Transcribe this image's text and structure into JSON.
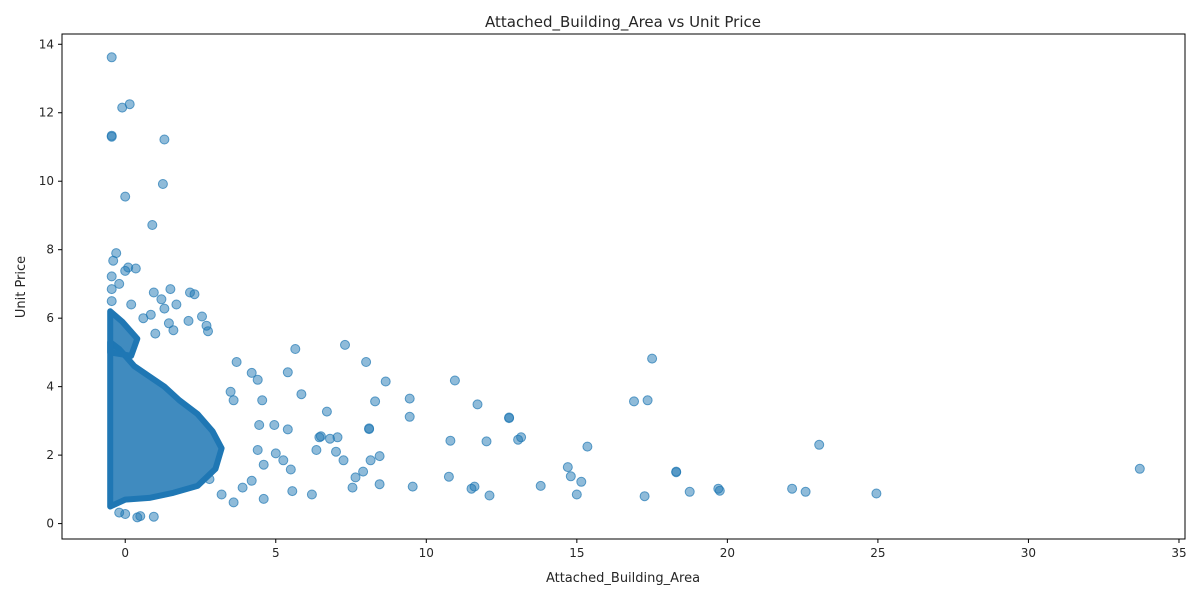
{
  "chart_data": {
    "type": "scatter",
    "title": "Attached_Building_Area vs Unit Price",
    "xlabel": "Attached_Building_Area",
    "ylabel": "Unit Price",
    "xlim": [
      -2.1,
      35.2
    ],
    "ylim": [
      -0.45,
      14.3
    ],
    "xticks": [
      0,
      5,
      10,
      15,
      20,
      25,
      30,
      35
    ],
    "yticks": [
      0,
      2,
      4,
      6,
      8,
      10,
      12,
      14
    ],
    "grid": false,
    "color": "#1f77b4",
    "series": [
      {
        "points": [
          [
            -0.45,
            13.62
          ],
          [
            -0.1,
            12.15
          ],
          [
            0.15,
            12.25
          ],
          [
            -0.45,
            11.33
          ],
          [
            -0.45,
            11.3
          ],
          [
            1.3,
            11.22
          ],
          [
            1.25,
            9.92
          ],
          [
            0.0,
            9.55
          ],
          [
            0.9,
            8.72
          ],
          [
            -0.3,
            7.9
          ],
          [
            -0.4,
            7.68
          ],
          [
            0.1,
            7.48
          ],
          [
            0.35,
            7.45
          ],
          [
            0.0,
            7.38
          ],
          [
            -0.45,
            7.22
          ],
          [
            -0.2,
            7.0
          ],
          [
            -0.45,
            6.85
          ],
          [
            0.95,
            6.75
          ],
          [
            1.5,
            6.85
          ],
          [
            2.15,
            6.75
          ],
          [
            2.3,
            6.7
          ],
          [
            1.2,
            6.55
          ],
          [
            -0.45,
            6.5
          ],
          [
            0.2,
            6.4
          ],
          [
            1.7,
            6.4
          ],
          [
            1.3,
            6.28
          ],
          [
            0.85,
            6.1
          ],
          [
            0.6,
            6.0
          ],
          [
            2.55,
            6.05
          ],
          [
            1.45,
            5.85
          ],
          [
            2.1,
            5.92
          ],
          [
            2.7,
            5.78
          ],
          [
            2.75,
            5.62
          ],
          [
            1.0,
            5.55
          ],
          [
            1.6,
            5.65
          ],
          [
            5.65,
            5.1
          ],
          [
            7.3,
            5.22
          ],
          [
            3.7,
            4.72
          ],
          [
            8.0,
            4.72
          ],
          [
            17.5,
            4.82
          ],
          [
            4.2,
            4.4
          ],
          [
            5.4,
            4.42
          ],
          [
            4.4,
            4.2
          ],
          [
            8.65,
            4.15
          ],
          [
            10.95,
            4.18
          ],
          [
            5.85,
            3.78
          ],
          [
            3.5,
            3.85
          ],
          [
            3.6,
            3.6
          ],
          [
            4.55,
            3.6
          ],
          [
            8.3,
            3.57
          ],
          [
            9.45,
            3.65
          ],
          [
            11.7,
            3.48
          ],
          [
            16.9,
            3.57
          ],
          [
            17.35,
            3.6
          ],
          [
            6.7,
            3.27
          ],
          [
            9.45,
            3.12
          ],
          [
            12.75,
            3.1
          ],
          [
            12.75,
            3.08
          ],
          [
            4.45,
            2.88
          ],
          [
            4.95,
            2.88
          ],
          [
            5.4,
            2.75
          ],
          [
            8.1,
            2.78
          ],
          [
            8.1,
            2.76
          ],
          [
            6.45,
            2.52
          ],
          [
            6.5,
            2.55
          ],
          [
            7.05,
            2.52
          ],
          [
            6.8,
            2.48
          ],
          [
            10.8,
            2.42
          ],
          [
            12.0,
            2.4
          ],
          [
            13.05,
            2.45
          ],
          [
            13.15,
            2.52
          ],
          [
            15.35,
            2.25
          ],
          [
            23.05,
            2.3
          ],
          [
            4.4,
            2.15
          ],
          [
            6.35,
            2.15
          ],
          [
            7.0,
            2.1
          ],
          [
            5.0,
            2.05
          ],
          [
            5.25,
            1.85
          ],
          [
            7.25,
            1.85
          ],
          [
            8.15,
            1.85
          ],
          [
            8.45,
            1.97
          ],
          [
            4.6,
            1.72
          ],
          [
            5.5,
            1.58
          ],
          [
            7.9,
            1.52
          ],
          [
            14.7,
            1.65
          ],
          [
            18.3,
            1.52
          ],
          [
            18.3,
            1.5
          ],
          [
            33.7,
            1.6
          ],
          [
            4.2,
            1.25
          ],
          [
            7.65,
            1.35
          ],
          [
            10.75,
            1.37
          ],
          [
            14.8,
            1.38
          ],
          [
            8.45,
            1.15
          ],
          [
            7.55,
            1.05
          ],
          [
            9.55,
            1.08
          ],
          [
            11.6,
            1.08
          ],
          [
            13.8,
            1.1
          ],
          [
            15.15,
            1.22
          ],
          [
            11.5,
            1.02
          ],
          [
            5.55,
            0.95
          ],
          [
            18.75,
            0.93
          ],
          [
            19.7,
            1.02
          ],
          [
            19.75,
            0.96
          ],
          [
            22.15,
            1.02
          ],
          [
            22.6,
            0.93
          ],
          [
            24.95,
            0.88
          ],
          [
            6.2,
            0.85
          ],
          [
            12.1,
            0.82
          ],
          [
            15.0,
            0.85
          ],
          [
            17.25,
            0.8
          ],
          [
            4.6,
            0.72
          ],
          [
            3.6,
            0.62
          ],
          [
            -0.2,
            0.32
          ],
          [
            0.5,
            0.22
          ],
          [
            0.95,
            0.2
          ],
          [
            0.0,
            0.28
          ],
          [
            0.4,
            0.18
          ],
          [
            3.2,
            0.85
          ],
          [
            3.9,
            1.05
          ],
          [
            2.8,
            1.3
          ]
        ]
      }
    ]
  }
}
